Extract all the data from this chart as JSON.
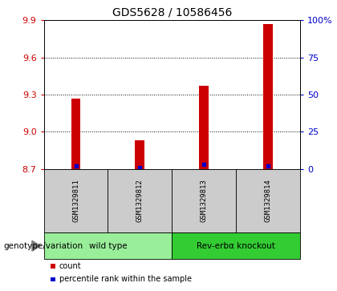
{
  "title": "GDS5628 / 10586456",
  "samples": [
    "GSM1329811",
    "GSM1329812",
    "GSM1329813",
    "GSM1329814"
  ],
  "counts": [
    9.27,
    8.93,
    9.37,
    9.87
  ],
  "percentiles": [
    2,
    1,
    3,
    2
  ],
  "ylim_left": [
    8.7,
    9.9
  ],
  "yticks_left": [
    8.7,
    9.0,
    9.3,
    9.6,
    9.9
  ],
  "ylim_right": [
    0,
    100
  ],
  "yticks_right": [
    0,
    25,
    50,
    75,
    100
  ],
  "bar_color": "#cc0000",
  "dot_color": "#0000cc",
  "groups": [
    {
      "label": "wild type",
      "indices": [
        0,
        1
      ],
      "color": "#99ee99"
    },
    {
      "label": "Rev-erbα knockout",
      "indices": [
        2,
        3
      ],
      "color": "#33cc33"
    }
  ],
  "legend_items": [
    {
      "color": "#cc0000",
      "label": "count"
    },
    {
      "color": "#0000cc",
      "label": "percentile rank within the sample"
    }
  ],
  "genotype_label": "genotype/variation",
  "title_fontsize": 10,
  "tick_label_color_left": "#cc0000",
  "tick_label_color_right": "#0000cc",
  "sample_cell_color": "#cccccc",
  "bar_width": 0.15
}
